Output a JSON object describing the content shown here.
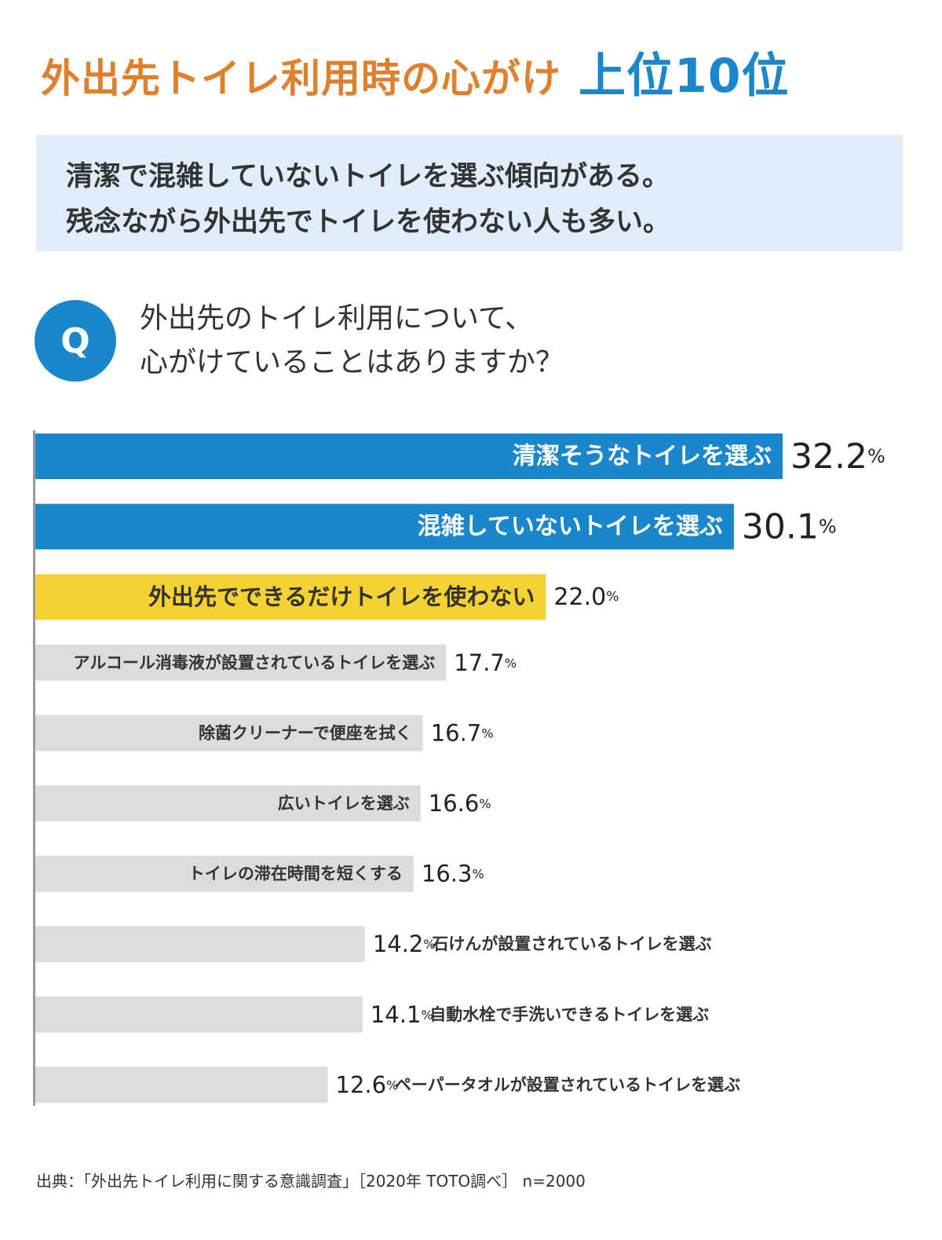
{
  "page": {
    "title_main": "外出先トイレ利用時の心がけ",
    "title_sub": "上位10位",
    "summary_line1": "清潔で混雑していないトイレを選ぶ傾向がある。",
    "summary_line2": "残念ながら外出先でトイレを使わない人も多い。",
    "q_badge": "Q",
    "question_line1": "外出先のトイレ利用について、",
    "question_line2": "心がけていることはありますか？",
    "source": "出典：「外出先トイレ利用に関する意識調査」［2020年 TOTO調べ］ n=2000"
  },
  "colors": {
    "title_orange": "#e0802c",
    "accent_blue": "#1a87cc",
    "highlight_yellow": "#f5d131",
    "bar_gray": "#dcdcdc",
    "summary_bg": "#dfeefa"
  },
  "chart_data": {
    "type": "bar",
    "orientation": "horizontal",
    "unit": "%",
    "categories": [
      "清潔そうなトイレを選ぶ",
      "混雑していないトイレを選ぶ",
      "外出先でできるだけトイレを使わない",
      "アルコール消毒液が設置されているトイレを選ぶ",
      "除菌クリーナーで便座を拭く",
      "広いトイレを選ぶ",
      "トイレの滞在時間を短くする",
      "石けんが設置されているトイレを選ぶ",
      "自動水栓で手洗いできるトイレを選ぶ",
      "ペーパータオルが設置されているトイレを選ぶ"
    ],
    "values": [
      32.2,
      30.1,
      22.0,
      17.7,
      16.7,
      16.6,
      16.3,
      14.2,
      14.1,
      12.6
    ],
    "value_labels": [
      "32.2",
      "30.1",
      "22.0",
      "17.7",
      "16.7",
      "16.6",
      "16.3",
      "14.2",
      "14.1",
      "12.6"
    ],
    "bar_colors": [
      "blue",
      "blue",
      "yellow",
      "gray",
      "gray",
      "gray",
      "gray",
      "gray",
      "gray",
      "gray"
    ],
    "label_position": [
      "inside",
      "inside",
      "inside",
      "inside",
      "inside",
      "inside",
      "inside",
      "outside",
      "outside",
      "outside"
    ],
    "xlim": [
      0,
      32.2
    ],
    "grid": false,
    "legend": "none"
  }
}
